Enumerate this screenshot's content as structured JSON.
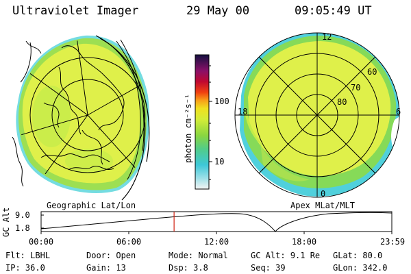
{
  "header": {
    "instrument": "Ultraviolet Imager",
    "date": "29 May 00",
    "time": "09:05:49 UT"
  },
  "colorbar": {
    "axis_label": "photon cm⁻²s⁻¹",
    "ticks": [
      "100",
      "10"
    ],
    "scale": "log"
  },
  "left_map": {
    "caption": "Geographic Lat/Lon"
  },
  "right_map": {
    "caption": "Apex MLat/MLT",
    "mlt_labels": [
      "12",
      "18",
      "6",
      "0"
    ],
    "lat_labels": [
      "60",
      "70",
      "80"
    ]
  },
  "altitude_plot": {
    "ylabel": "GC Alt",
    "yticks": [
      "9.0",
      "1.8"
    ],
    "xticks": [
      "00:00",
      "06:00",
      "12:00",
      "18:00",
      "23:59"
    ],
    "current_time_hours": 9.1
  },
  "info": {
    "row1": [
      {
        "label": "Flt:",
        "value": "LBHL"
      },
      {
        "label": "Door:",
        "value": "Open"
      },
      {
        "label": "Mode:",
        "value": "Normal"
      },
      {
        "label": "GC Alt:",
        "value": "9.1 Re"
      },
      {
        "label": "GLat:",
        "value": "80.0"
      }
    ],
    "row2": [
      {
        "label": "IP:",
        "value": "36.0"
      },
      {
        "label": "Gain:",
        "value": "13"
      },
      {
        "label": "Dsp:",
        "value": "3.8"
      },
      {
        "label": "Seq:",
        "value": "39"
      },
      {
        "label": "GLon:",
        "value": "342.0"
      }
    ]
  },
  "colors": {
    "aurora_main": "#dff04a",
    "aurora_light": "#c8ee44",
    "aurora_green": "#7cd86a",
    "aurora_cyan": "#46cce0",
    "marker_red": "#d02010"
  }
}
